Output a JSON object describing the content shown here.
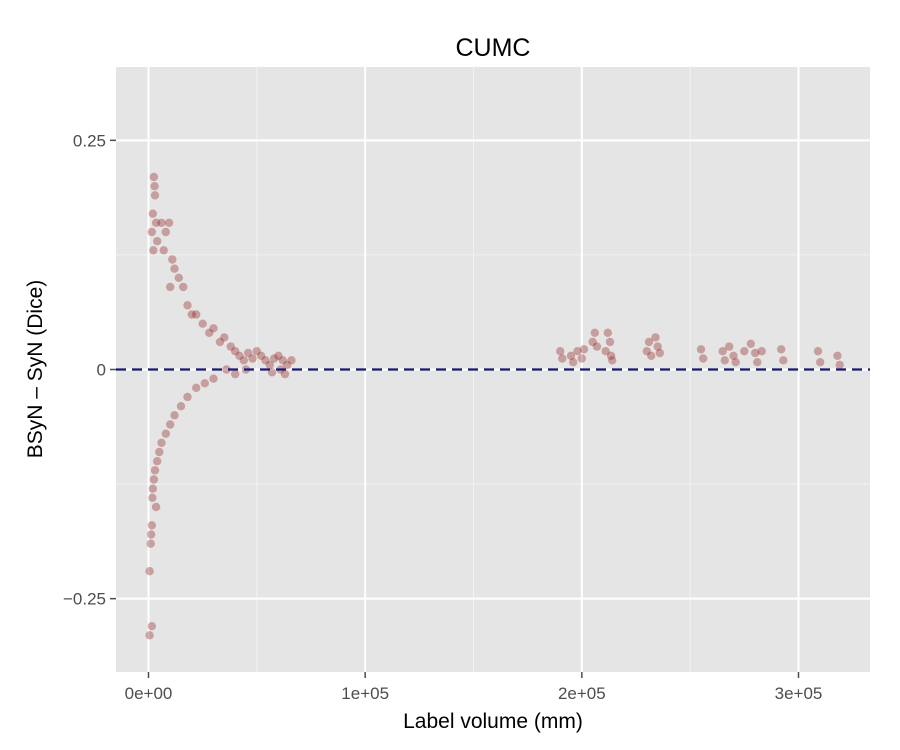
{
  "chart_data": {
    "type": "scatter",
    "title": "CUMC",
    "xlabel": "Label volume (mm)",
    "ylabel": "BSyN – SyN (Dice)",
    "xlim": [
      -15000,
      333000
    ],
    "ylim": [
      -0.33,
      0.33
    ],
    "xticks": [
      0,
      100000,
      200000,
      300000
    ],
    "xtick_labels": [
      "0e+00",
      "1e+05",
      "2e+05",
      "3e+05"
    ],
    "yticks": [
      -0.25,
      0,
      0.25
    ],
    "ytick_labels": [
      "−0.25",
      "0",
      "0.25"
    ],
    "grid": true,
    "background": "#e5e5e5",
    "point_color": "#8b1a1a",
    "reference_line": {
      "y": 0,
      "style": "dashed",
      "color": "#1a1a6e"
    },
    "series": [
      {
        "points": [
          [
            2500,
            0.21
          ],
          [
            2800,
            0.2
          ],
          [
            3000,
            0.19
          ],
          [
            2000,
            0.17
          ],
          [
            3500,
            0.16
          ],
          [
            1500,
            0.15
          ],
          [
            4000,
            0.14
          ],
          [
            2200,
            0.13
          ],
          [
            6000,
            0.16
          ],
          [
            8000,
            0.15
          ],
          [
            9500,
            0.16
          ],
          [
            7000,
            0.13
          ],
          [
            11000,
            0.12
          ],
          [
            12000,
            0.11
          ],
          [
            14000,
            0.1
          ],
          [
            10000,
            0.09
          ],
          [
            16000,
            0.09
          ],
          [
            18000,
            0.07
          ],
          [
            20000,
            0.06
          ],
          [
            22000,
            0.06
          ],
          [
            25000,
            0.05
          ],
          [
            28000,
            0.04
          ],
          [
            30000,
            0.045
          ],
          [
            33000,
            0.03
          ],
          [
            35000,
            0.035
          ],
          [
            38000,
            0.025
          ],
          [
            40000,
            0.02
          ],
          [
            42000,
            0.015
          ],
          [
            44000,
            0.01
          ],
          [
            46000,
            0.018
          ],
          [
            48000,
            0.012
          ],
          [
            50000,
            0.02
          ],
          [
            52000,
            0.015
          ],
          [
            54000,
            0.01
          ],
          [
            56000,
            0.005
          ],
          [
            58000,
            0.012
          ],
          [
            60000,
            0.015
          ],
          [
            62000,
            0.01
          ],
          [
            64000,
            0.005
          ],
          [
            66000,
            0.01
          ],
          [
            61000,
            0.0
          ],
          [
            63000,
            -0.005
          ],
          [
            57000,
            -0.003
          ],
          [
            45000,
            0.0
          ],
          [
            40000,
            -0.005
          ],
          [
            36000,
            0.0
          ],
          [
            30000,
            -0.01
          ],
          [
            26000,
            -0.015
          ],
          [
            22000,
            -0.02
          ],
          [
            18000,
            -0.03
          ],
          [
            15000,
            -0.04
          ],
          [
            12000,
            -0.05
          ],
          [
            10000,
            -0.06
          ],
          [
            8000,
            -0.07
          ],
          [
            6000,
            -0.08
          ],
          [
            5000,
            -0.09
          ],
          [
            4000,
            -0.1
          ],
          [
            3000,
            -0.11
          ],
          [
            2500,
            -0.12
          ],
          [
            2000,
            -0.13
          ],
          [
            1800,
            -0.14
          ],
          [
            3500,
            -0.15
          ],
          [
            1500,
            -0.17
          ],
          [
            1200,
            -0.18
          ],
          [
            1000,
            -0.19
          ],
          [
            500,
            -0.22
          ],
          [
            1500,
            -0.28
          ],
          [
            500,
            -0.29
          ],
          [
            190000,
            0.02
          ],
          [
            191000,
            0.012
          ],
          [
            195000,
            0.015
          ],
          [
            196000,
            0.008
          ],
          [
            198000,
            0.02
          ],
          [
            200000,
            0.012
          ],
          [
            201000,
            0.022
          ],
          [
            205000,
            0.03
          ],
          [
            206000,
            0.04
          ],
          [
            207000,
            0.025
          ],
          [
            211000,
            0.02
          ],
          [
            212000,
            0.04
          ],
          [
            213000,
            0.03
          ],
          [
            213500,
            0.015
          ],
          [
            214000,
            0.01
          ],
          [
            230000,
            0.02
          ],
          [
            231000,
            0.03
          ],
          [
            232000,
            0.015
          ],
          [
            234000,
            0.035
          ],
          [
            235000,
            0.025
          ],
          [
            236000,
            0.018
          ],
          [
            255000,
            0.022
          ],
          [
            256000,
            0.012
          ],
          [
            265000,
            0.02
          ],
          [
            266000,
            0.01
          ],
          [
            268000,
            0.025
          ],
          [
            270000,
            0.015
          ],
          [
            271000,
            0.008
          ],
          [
            275000,
            0.02
          ],
          [
            278000,
            0.028
          ],
          [
            280000,
            0.018
          ],
          [
            281000,
            0.008
          ],
          [
            283000,
            0.02
          ],
          [
            292000,
            0.022
          ],
          [
            293000,
            0.01
          ],
          [
            309000,
            0.02
          ],
          [
            310000,
            0.008
          ],
          [
            318000,
            0.015
          ],
          [
            319000,
            0.005
          ]
        ]
      }
    ]
  }
}
